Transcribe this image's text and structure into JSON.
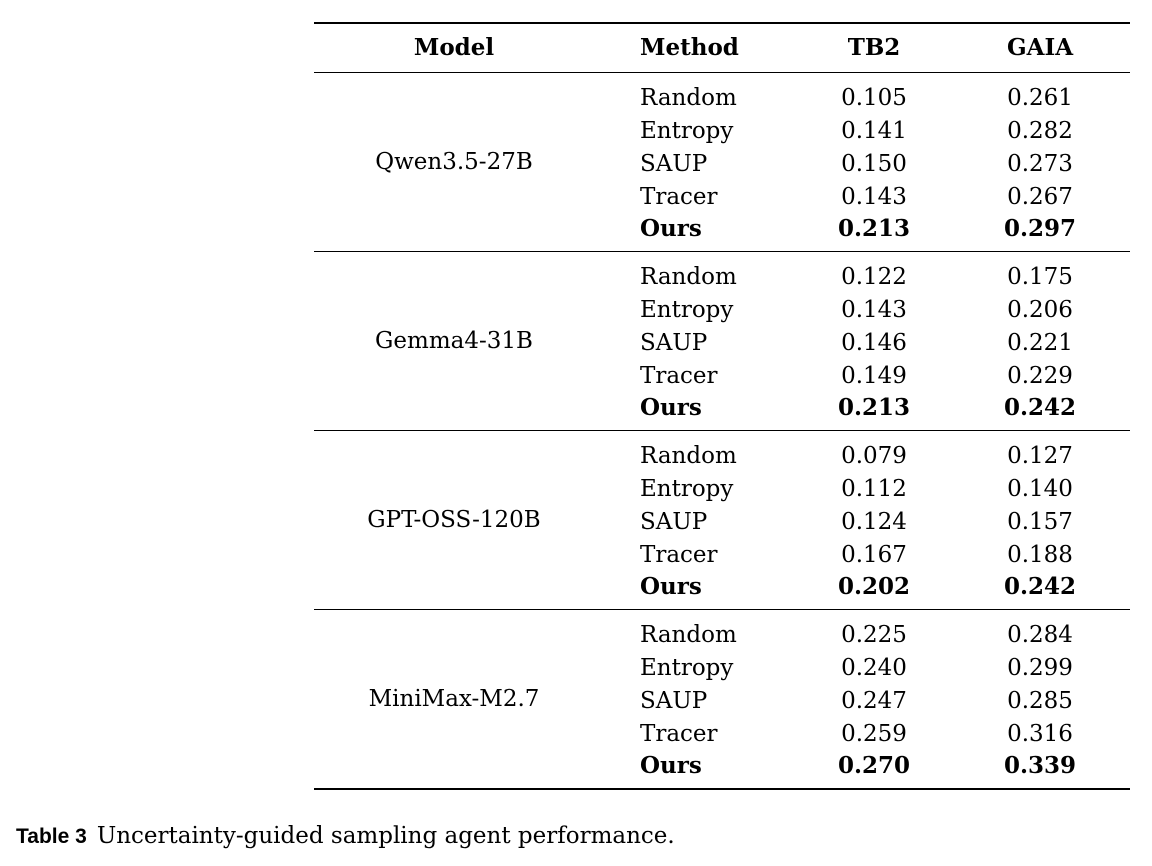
{
  "table": {
    "headers": {
      "model": "Model",
      "method": "Method",
      "tb2": "TB2",
      "gaia": "GAIA"
    },
    "groups": [
      {
        "model": "Qwen3.5-27B",
        "rows": [
          {
            "method": "Random",
            "tb2": "0.105",
            "gaia": "0.261"
          },
          {
            "method": "Entropy",
            "tb2": "0.141",
            "gaia": "0.282"
          },
          {
            "method": "SAUP",
            "tb2": "0.150",
            "gaia": "0.273"
          },
          {
            "method": "Tracer",
            "tb2": "0.143",
            "gaia": "0.267"
          },
          {
            "method": "Ours",
            "tb2": "0.213",
            "gaia": "0.297"
          }
        ]
      },
      {
        "model": "Gemma4-31B",
        "rows": [
          {
            "method": "Random",
            "tb2": "0.122",
            "gaia": "0.175"
          },
          {
            "method": "Entropy",
            "tb2": "0.143",
            "gaia": "0.206"
          },
          {
            "method": "SAUP",
            "tb2": "0.146",
            "gaia": "0.221"
          },
          {
            "method": "Tracer",
            "tb2": "0.149",
            "gaia": "0.229"
          },
          {
            "method": "Ours",
            "tb2": "0.213",
            "gaia": "0.242"
          }
        ]
      },
      {
        "model": "GPT-OSS-120B",
        "rows": [
          {
            "method": "Random",
            "tb2": "0.079",
            "gaia": "0.127"
          },
          {
            "method": "Entropy",
            "tb2": "0.112",
            "gaia": "0.140"
          },
          {
            "method": "SAUP",
            "tb2": "0.124",
            "gaia": "0.157"
          },
          {
            "method": "Tracer",
            "tb2": "0.167",
            "gaia": "0.188"
          },
          {
            "method": "Ours",
            "tb2": "0.202",
            "gaia": "0.242"
          }
        ]
      },
      {
        "model": "MiniMax-M2.7",
        "rows": [
          {
            "method": "Random",
            "tb2": "0.225",
            "gaia": "0.284"
          },
          {
            "method": "Entropy",
            "tb2": "0.240",
            "gaia": "0.299"
          },
          {
            "method": "SAUP",
            "tb2": "0.247",
            "gaia": "0.285"
          },
          {
            "method": "Tracer",
            "tb2": "0.259",
            "gaia": "0.316"
          },
          {
            "method": "Ours",
            "tb2": "0.270",
            "gaia": "0.339"
          }
        ]
      }
    ]
  },
  "caption": {
    "label": "Table 3",
    "text": "Uncertainty-guided sampling agent performance."
  }
}
